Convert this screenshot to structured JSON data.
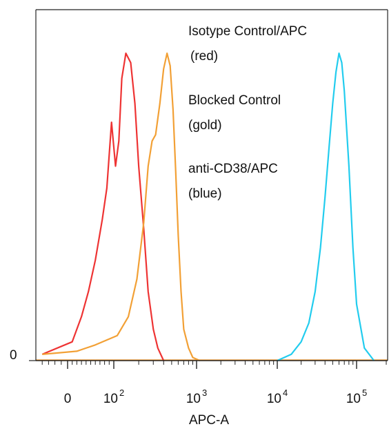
{
  "chart_data": {
    "type": "line",
    "title": "",
    "xlabel": "APC-A",
    "ylabel": "",
    "x_scale": "biexponential (log-like, with linear region around 0)",
    "xlim": [
      -50,
      200000
    ],
    "ylim": [
      0,
      1
    ],
    "y_tick_labels": [
      "0"
    ],
    "x_tick_labels": [
      {
        "value": 0,
        "base": "0",
        "exp": ""
      },
      {
        "value": 100,
        "base": "10",
        "exp": "2"
      },
      {
        "value": 1000,
        "base": "10",
        "exp": "3"
      },
      {
        "value": 10000,
        "base": "10",
        "exp": "4"
      },
      {
        "value": 100000,
        "base": "10",
        "exp": "5"
      }
    ],
    "grid": false,
    "legend": "none",
    "annotations": [
      {
        "text": "Isotype Control/APC"
      },
      {
        "text": " (red)"
      },
      {
        "text": "Blocked Control"
      },
      {
        "text": "(gold)"
      },
      {
        "text": "anti-CD38/APC"
      },
      {
        "text": "(blue)"
      }
    ],
    "series": [
      {
        "color": "#ee3333",
        "x": [
          -40,
          10,
          30,
          45,
          60,
          75,
          85,
          95,
          105,
          115,
          125,
          140,
          160,
          180,
          200,
          230,
          260,
          300,
          340,
          400
        ],
        "y": [
          0.02,
          0.06,
          0.14,
          0.22,
          0.32,
          0.45,
          0.55,
          0.76,
          0.62,
          0.7,
          0.9,
          0.98,
          0.95,
          0.82,
          0.62,
          0.42,
          0.22,
          0.1,
          0.04,
          0.0
        ]
      },
      {
        "color": "#f2a035",
        "x": [
          -40,
          20,
          60,
          110,
          150,
          190,
          230,
          260,
          290,
          320,
          360,
          400,
          440,
          480,
          520,
          560,
          600,
          650,
          700,
          800,
          900,
          1100
        ],
        "y": [
          0.02,
          0.03,
          0.05,
          0.08,
          0.14,
          0.26,
          0.44,
          0.62,
          0.7,
          0.72,
          0.82,
          0.93,
          0.98,
          0.94,
          0.8,
          0.6,
          0.4,
          0.22,
          0.1,
          0.04,
          0.01,
          0.0
        ]
      },
      {
        "color": "#22ccee",
        "x": [
          10000,
          15000,
          20000,
          25000,
          30000,
          35000,
          40000,
          45000,
          50000,
          55000,
          60000,
          65000,
          70000,
          80000,
          90000,
          100000,
          120000,
          150000
        ],
        "y": [
          0.0,
          0.02,
          0.06,
          0.12,
          0.22,
          0.36,
          0.52,
          0.68,
          0.82,
          0.92,
          0.98,
          0.95,
          0.86,
          0.62,
          0.36,
          0.18,
          0.04,
          0.0
        ]
      }
    ]
  }
}
